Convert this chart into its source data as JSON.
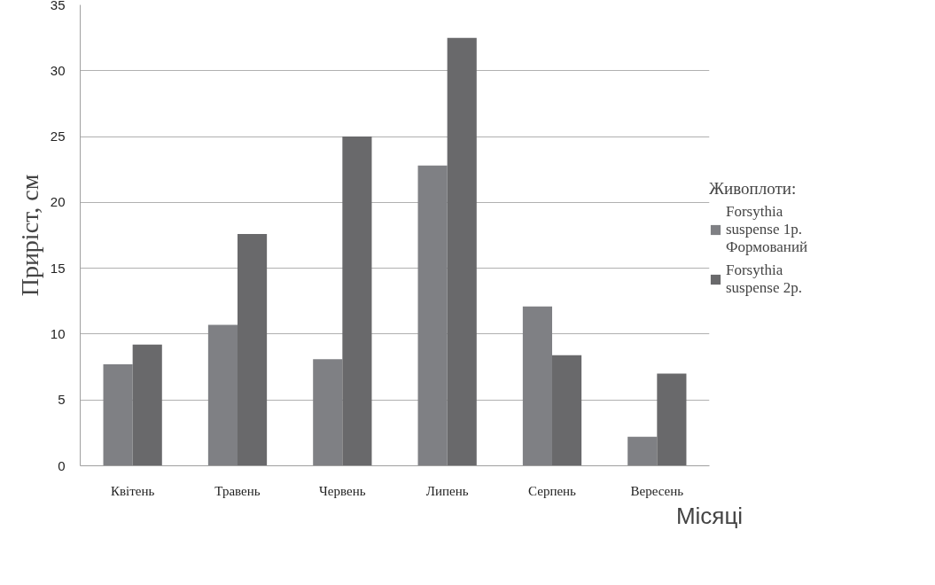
{
  "chart_data": {
    "type": "bar",
    "xlabel": "Місяці",
    "ylabel": "Приріст, см",
    "legend_title": "Живоплоти:",
    "categories": [
      "Квітень",
      "Травень",
      "Червень",
      "Липень",
      "Серпень",
      "Вересень"
    ],
    "series": [
      {
        "name": "Forsythia suspense 1р. Формований",
        "color": "#7f8084",
        "values": [
          7.7,
          10.7,
          8.1,
          22.8,
          12.1,
          2.2
        ]
      },
      {
        "name": "Forsythia suspense 2р.",
        "color": "#69696b",
        "values": [
          9.2,
          17.6,
          25.0,
          32.5,
          8.4,
          7.0
        ]
      }
    ],
    "ylim": [
      0,
      35
    ],
    "yticks": [
      0,
      5,
      10,
      15,
      20,
      25,
      30,
      35
    ],
    "grid": "y",
    "legend": "right"
  }
}
